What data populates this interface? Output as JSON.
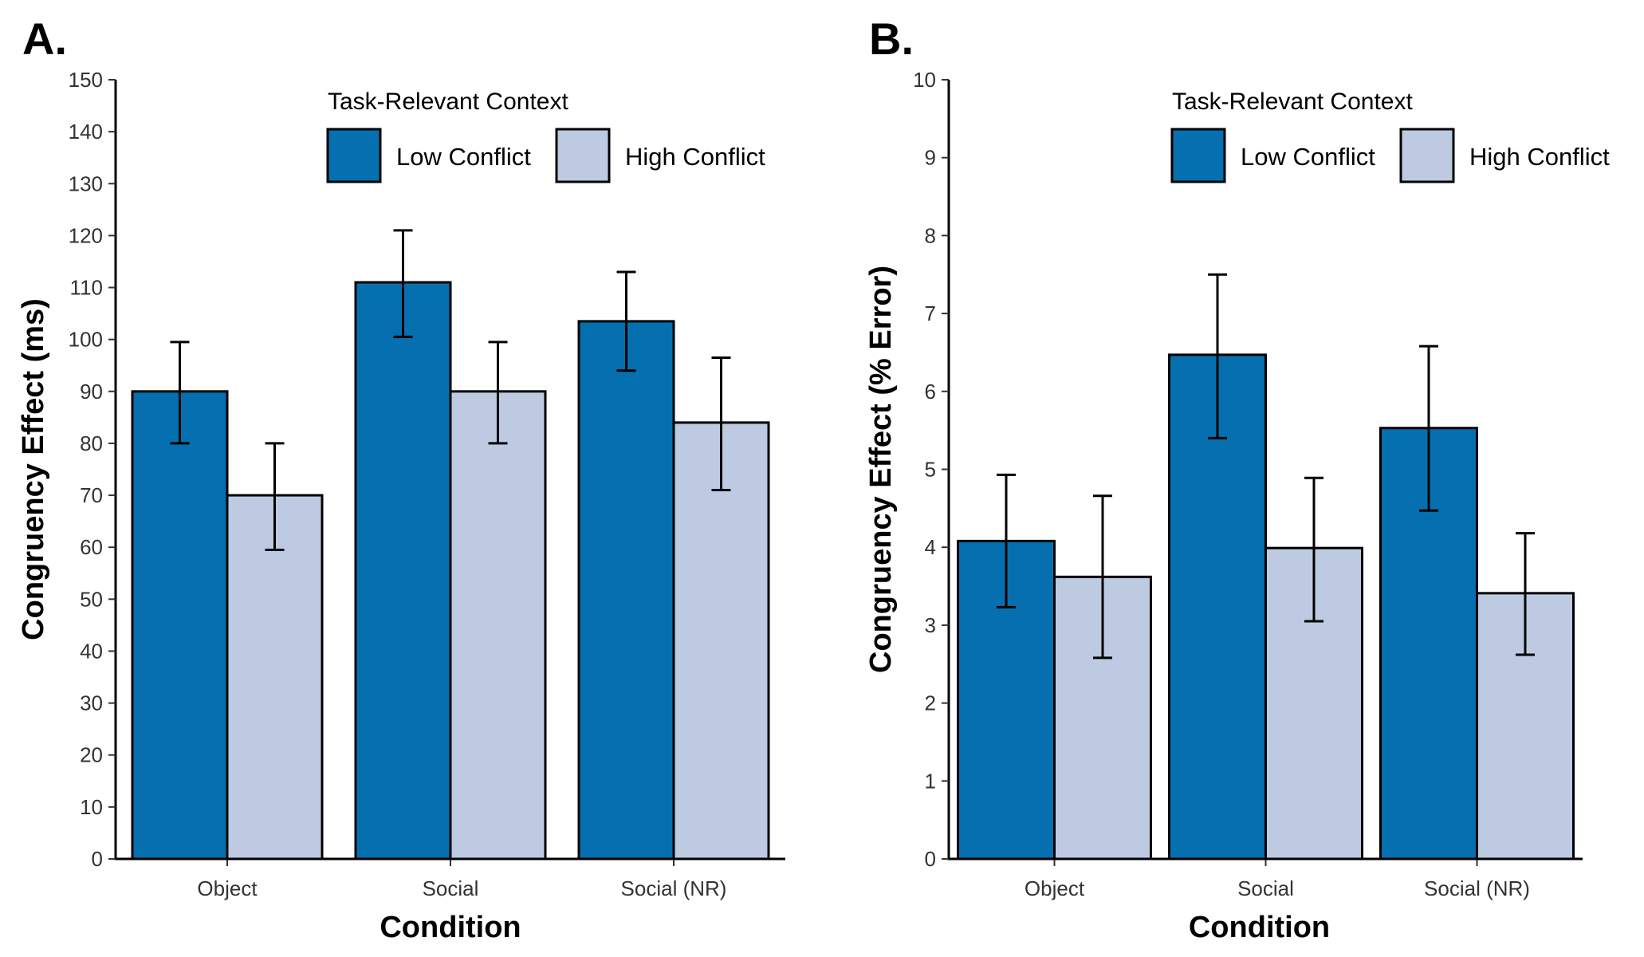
{
  "chart_data": [
    {
      "type": "bar",
      "panel_label": "A.",
      "categories": [
        "Object",
        "Social",
        "Social (NR)"
      ],
      "series": [
        {
          "name": "Low Conflict",
          "values": [
            90,
            111,
            103.5
          ],
          "error_low": [
            80,
            100.5,
            94
          ],
          "error_high": [
            99.5,
            121,
            113
          ],
          "color": "#066FAF"
        },
        {
          "name": "High Conflict",
          "values": [
            70,
            90,
            84
          ],
          "error_low": [
            59.5,
            80,
            71
          ],
          "error_high": [
            80,
            99.5,
            96.5
          ],
          "color": "#BDCAE2"
        }
      ],
      "xlabel": "Condition",
      "ylabel": "Congruency Effect (ms)",
      "ylim": [
        0,
        150
      ],
      "yticks": [
        0,
        10,
        20,
        30,
        40,
        50,
        60,
        70,
        80,
        90,
        100,
        110,
        120,
        130,
        140,
        150
      ],
      "legend_title": "Task-Relevant Context",
      "legend_position": "top",
      "grid": false
    },
    {
      "type": "bar",
      "panel_label": "B.",
      "categories": [
        "Object",
        "Social",
        "Social (NR)"
      ],
      "series": [
        {
          "name": "Low Conflict",
          "values": [
            4.08,
            6.47,
            5.53
          ],
          "error_low": [
            3.23,
            5.4,
            4.47
          ],
          "error_high": [
            4.93,
            7.5,
            6.58
          ],
          "color": "#066FAF"
        },
        {
          "name": "High Conflict",
          "values": [
            3.62,
            3.99,
            3.41
          ],
          "error_low": [
            2.58,
            3.05,
            2.62
          ],
          "error_high": [
            4.66,
            4.89,
            4.18
          ],
          "color": "#BDCAE2"
        }
      ],
      "xlabel": "Condition",
      "ylabel": "Congruency Effect (% Error)",
      "ylim": [
        0,
        10
      ],
      "yticks": [
        0,
        1,
        2,
        3,
        4,
        5,
        6,
        7,
        8,
        9,
        10
      ],
      "legend_title": "Task-Relevant Context",
      "legend_position": "top",
      "grid": false
    }
  ]
}
